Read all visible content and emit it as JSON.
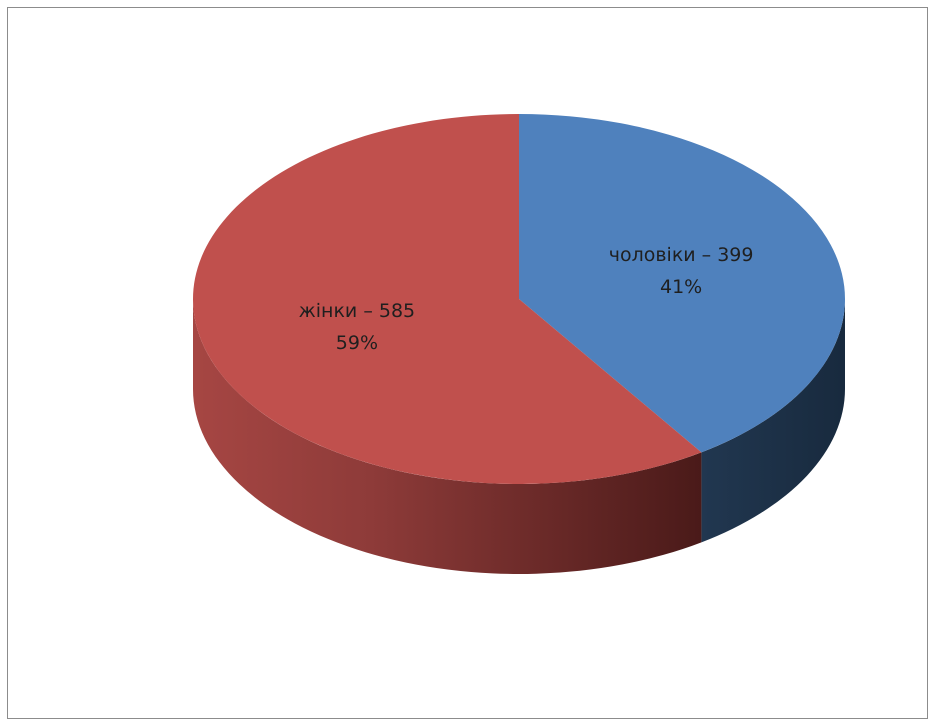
{
  "chart_data": {
    "type": "pie",
    "style": "3d",
    "start_angle_deg": 0,
    "direction": "clockwise",
    "slices": [
      {
        "label": "чоловіки – 399",
        "value": 399,
        "percent_label": "41%",
        "color": "#4f81bd",
        "side_color": "#1f3350"
      },
      {
        "label": "жінки – 585",
        "value": 585,
        "percent_label": "59%",
        "color": "#c0504d",
        "side_color": "#7a2f2d"
      }
    ],
    "legend": "none"
  }
}
